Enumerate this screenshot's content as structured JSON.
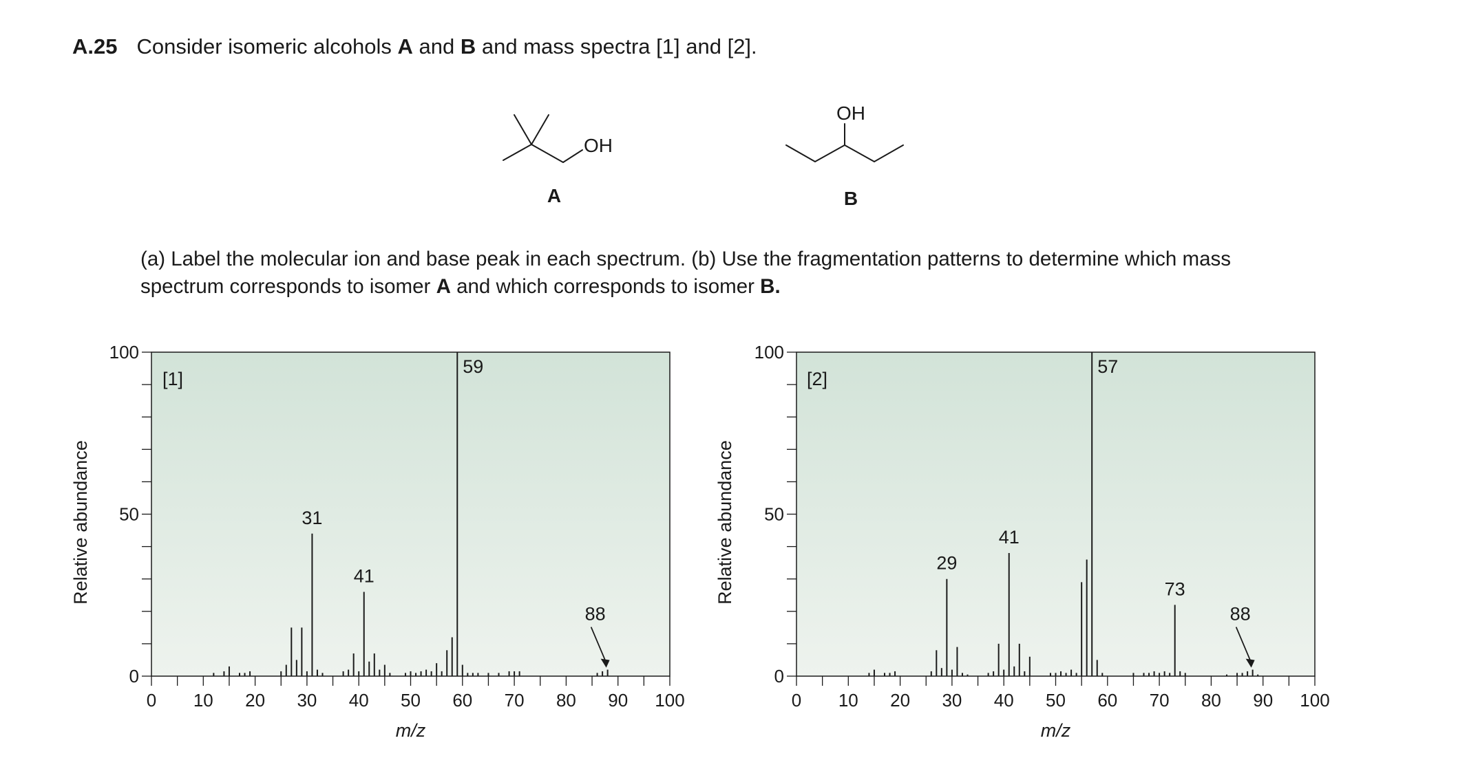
{
  "problem": {
    "number": "A.25",
    "text_1": "Consider isomeric alcohols ",
    "A": "A",
    "text_2": " and ",
    "B": "B",
    "text_3": " and mass spectra [1] and [2]."
  },
  "molecules": {
    "A": {
      "label": "A",
      "oh": "OH"
    },
    "B": {
      "label": "B",
      "oh": "OH"
    }
  },
  "question": {
    "part_1": "(a) Label the molecular ion and base peak in each spectrum. (b) Use the fragmentation patterns to determine which mass spectrum corresponds to isomer ",
    "A": "A",
    "part_2": " and which corresponds to isomer ",
    "B": "B."
  },
  "colors": {
    "plot_top": "#d2e3d8",
    "plot_bottom": "#eef3ee",
    "line": "#1a1a1a"
  },
  "chart_data": [
    {
      "type": "bar",
      "panel_label": "[1]",
      "xlabel": "m/z",
      "ylabel": "Relative abundance",
      "xlim": [
        0,
        100
      ],
      "ylim": [
        0,
        100
      ],
      "x_ticks": [
        "0",
        "10",
        "20",
        "30",
        "40",
        "50",
        "60",
        "70",
        "80",
        "90",
        "100"
      ],
      "y_ticks": [
        "0",
        "50",
        "100"
      ],
      "peaks": [
        {
          "x": 12,
          "y": 1
        },
        {
          "x": 14,
          "y": 1.5
        },
        {
          "x": 15,
          "y": 3
        },
        {
          "x": 17,
          "y": 1
        },
        {
          "x": 18,
          "y": 1
        },
        {
          "x": 19,
          "y": 1.5
        },
        {
          "x": 25,
          "y": 1.5
        },
        {
          "x": 26,
          "y": 3.5
        },
        {
          "x": 27,
          "y": 15
        },
        {
          "x": 28,
          "y": 5
        },
        {
          "x": 29,
          "y": 15
        },
        {
          "x": 30,
          "y": 1.5
        },
        {
          "x": 31,
          "y": 44
        },
        {
          "x": 32,
          "y": 2
        },
        {
          "x": 33,
          "y": 1
        },
        {
          "x": 37,
          "y": 1.5
        },
        {
          "x": 38,
          "y": 2
        },
        {
          "x": 39,
          "y": 7
        },
        {
          "x": 40,
          "y": 1.5
        },
        {
          "x": 41,
          "y": 26
        },
        {
          "x": 42,
          "y": 4.5
        },
        {
          "x": 43,
          "y": 7
        },
        {
          "x": 44,
          "y": 2
        },
        {
          "x": 45,
          "y": 3.5
        },
        {
          "x": 46,
          "y": 1
        },
        {
          "x": 49,
          "y": 1
        },
        {
          "x": 50,
          "y": 1.5
        },
        {
          "x": 51,
          "y": 1
        },
        {
          "x": 52,
          "y": 1.5
        },
        {
          "x": 53,
          "y": 2
        },
        {
          "x": 54,
          "y": 1.5
        },
        {
          "x": 55,
          "y": 4
        },
        {
          "x": 56,
          "y": 1.5
        },
        {
          "x": 57,
          "y": 8
        },
        {
          "x": 58,
          "y": 12
        },
        {
          "x": 59,
          "y": 100
        },
        {
          "x": 60,
          "y": 3.5
        },
        {
          "x": 61,
          "y": 1
        },
        {
          "x": 62,
          "y": 1
        },
        {
          "x": 63,
          "y": 1
        },
        {
          "x": 65,
          "y": 1
        },
        {
          "x": 67,
          "y": 1
        },
        {
          "x": 69,
          "y": 1.5
        },
        {
          "x": 70,
          "y": 1.5
        },
        {
          "x": 71,
          "y": 1.5
        },
        {
          "x": 86,
          "y": 1
        },
        {
          "x": 87,
          "y": 1.5
        },
        {
          "x": 88,
          "y": 2
        }
      ],
      "annotations": [
        {
          "label": "59",
          "x": 59,
          "y": 100
        },
        {
          "label": "31",
          "x": 31,
          "y": 44
        },
        {
          "label": "41",
          "x": 41,
          "y": 26
        },
        {
          "label": "88",
          "x": 88,
          "y": 2
        }
      ]
    },
    {
      "type": "bar",
      "panel_label": "[2]",
      "xlabel": "m/z",
      "ylabel": "Relative abundance",
      "xlim": [
        0,
        100
      ],
      "ylim": [
        0,
        100
      ],
      "x_ticks": [
        "0",
        "10",
        "20",
        "30",
        "40",
        "50",
        "60",
        "70",
        "80",
        "90",
        "100"
      ],
      "y_ticks": [
        "0",
        "50",
        "100"
      ],
      "peaks": [
        {
          "x": 14,
          "y": 1
        },
        {
          "x": 15,
          "y": 2
        },
        {
          "x": 17,
          "y": 1
        },
        {
          "x": 18,
          "y": 1
        },
        {
          "x": 19,
          "y": 1.5
        },
        {
          "x": 26,
          "y": 1.5
        },
        {
          "x": 27,
          "y": 8
        },
        {
          "x": 28,
          "y": 2.5
        },
        {
          "x": 29,
          "y": 30
        },
        {
          "x": 30,
          "y": 2
        },
        {
          "x": 31,
          "y": 9
        },
        {
          "x": 32,
          "y": 1
        },
        {
          "x": 33,
          "y": 0.5
        },
        {
          "x": 37,
          "y": 1
        },
        {
          "x": 38,
          "y": 1.5
        },
        {
          "x": 39,
          "y": 10
        },
        {
          "x": 40,
          "y": 2
        },
        {
          "x": 41,
          "y": 38
        },
        {
          "x": 42,
          "y": 3
        },
        {
          "x": 43,
          "y": 10
        },
        {
          "x": 44,
          "y": 1.5
        },
        {
          "x": 45,
          "y": 6
        },
        {
          "x": 49,
          "y": 1
        },
        {
          "x": 50,
          "y": 1
        },
        {
          "x": 51,
          "y": 1.5
        },
        {
          "x": 52,
          "y": 1
        },
        {
          "x": 53,
          "y": 2
        },
        {
          "x": 54,
          "y": 1
        },
        {
          "x": 55,
          "y": 29
        },
        {
          "x": 56,
          "y": 36
        },
        {
          "x": 57,
          "y": 100
        },
        {
          "x": 58,
          "y": 5
        },
        {
          "x": 59,
          "y": 1
        },
        {
          "x": 65,
          "y": 1
        },
        {
          "x": 67,
          "y": 1
        },
        {
          "x": 68,
          "y": 1
        },
        {
          "x": 69,
          "y": 1.5
        },
        {
          "x": 70,
          "y": 1
        },
        {
          "x": 71,
          "y": 1.5
        },
        {
          "x": 72,
          "y": 1
        },
        {
          "x": 73,
          "y": 22
        },
        {
          "x": 74,
          "y": 1.5
        },
        {
          "x": 75,
          "y": 1
        },
        {
          "x": 83,
          "y": 0.5
        },
        {
          "x": 85,
          "y": 1
        },
        {
          "x": 86,
          "y": 1
        },
        {
          "x": 87,
          "y": 1.5
        },
        {
          "x": 88,
          "y": 2
        },
        {
          "x": 89,
          "y": 0.5
        }
      ],
      "annotations": [
        {
          "label": "57",
          "x": 57,
          "y": 100
        },
        {
          "label": "41",
          "x": 41,
          "y": 38
        },
        {
          "label": "29",
          "x": 29,
          "y": 30
        },
        {
          "label": "73",
          "x": 73,
          "y": 22
        },
        {
          "label": "88",
          "x": 88,
          "y": 2
        }
      ]
    }
  ]
}
